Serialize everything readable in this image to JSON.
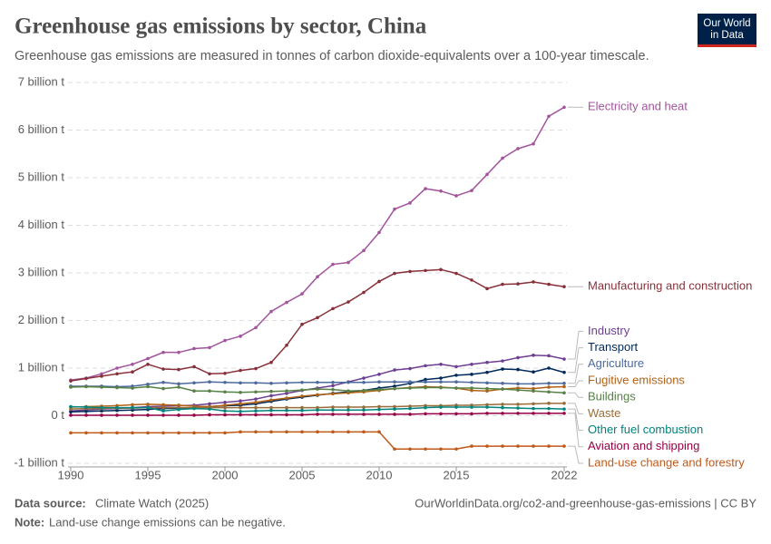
{
  "chart_data": {
    "type": "line",
    "title": "Greenhouse gas emissions by sector, China",
    "subtitle": "Greenhouse gas emissions are measured in tonnes of carbon dioxide-equivalents over a 100-year timescale.",
    "logo": [
      "Our World",
      "in Data"
    ],
    "source_label": "Data source:",
    "source": "Climate Watch (2025)",
    "url_license": "OurWorldinData.org/co2-and-greenhouse-gas-emissions | CC BY",
    "note_label": "Note:",
    "note": "Land-use change emissions can be negative.",
    "x": [
      1990,
      1991,
      1992,
      1993,
      1994,
      1995,
      1996,
      1997,
      1998,
      1999,
      2000,
      2001,
      2002,
      2003,
      2004,
      2005,
      2006,
      2007,
      2008,
      2009,
      2010,
      2011,
      2012,
      2013,
      2014,
      2015,
      2016,
      2017,
      2018,
      2019,
      2020,
      2021,
      2022
    ],
    "xlim": [
      1990,
      2022
    ],
    "xticks": [
      1990,
      1995,
      2000,
      2005,
      2010,
      2015,
      2022
    ],
    "ylim": [
      -1,
      7
    ],
    "yticks": [
      {
        "value": -1,
        "label": "-1 billion t"
      },
      {
        "value": 0,
        "label": "0 t"
      },
      {
        "value": 1,
        "label": "1 billion t"
      },
      {
        "value": 2,
        "label": "2 billion t"
      },
      {
        "value": 3,
        "label": "3 billion t"
      },
      {
        "value": 4,
        "label": "4 billion t"
      },
      {
        "value": 5,
        "label": "5 billion t"
      },
      {
        "value": 6,
        "label": "6 billion t"
      },
      {
        "value": 7,
        "label": "7 billion t"
      }
    ],
    "grid": true,
    "series": [
      {
        "name": "Electricity and heat",
        "color": "#a2559c",
        "values": [
          0.75,
          0.79,
          0.88,
          1.0,
          1.08,
          1.2,
          1.33,
          1.33,
          1.41,
          1.43,
          1.58,
          1.67,
          1.85,
          2.19,
          2.38,
          2.56,
          2.92,
          3.18,
          3.22,
          3.47,
          3.85,
          4.34,
          4.47,
          4.77,
          4.72,
          4.62,
          4.73,
          5.07,
          5.41,
          5.61,
          5.71,
          6.29,
          6.48
        ]
      },
      {
        "name": "Manufacturing and construction",
        "color": "#883039",
        "values": [
          0.73,
          0.78,
          0.83,
          0.88,
          0.92,
          1.08,
          0.98,
          0.97,
          1.03,
          0.88,
          0.89,
          0.95,
          0.99,
          1.12,
          1.48,
          1.92,
          2.06,
          2.25,
          2.39,
          2.59,
          2.82,
          2.99,
          3.03,
          3.05,
          3.07,
          2.99,
          2.85,
          2.67,
          2.76,
          2.77,
          2.81,
          2.76,
          2.71
        ]
      },
      {
        "name": "Industry",
        "color": "#6d3e91",
        "values": [
          0.1,
          0.12,
          0.14,
          0.15,
          0.17,
          0.19,
          0.2,
          0.21,
          0.22,
          0.25,
          0.28,
          0.31,
          0.35,
          0.42,
          0.47,
          0.53,
          0.58,
          0.63,
          0.71,
          0.79,
          0.87,
          0.96,
          0.99,
          1.05,
          1.08,
          1.03,
          1.08,
          1.12,
          1.15,
          1.22,
          1.27,
          1.26,
          1.19
        ]
      },
      {
        "name": "Transport",
        "color": "#00295b",
        "values": [
          0.08,
          0.09,
          0.1,
          0.11,
          0.12,
          0.13,
          0.15,
          0.16,
          0.17,
          0.19,
          0.21,
          0.22,
          0.25,
          0.3,
          0.35,
          0.39,
          0.43,
          0.47,
          0.5,
          0.53,
          0.58,
          0.62,
          0.68,
          0.76,
          0.79,
          0.85,
          0.87,
          0.91,
          0.98,
          0.97,
          0.92,
          1.0,
          0.91
        ]
      },
      {
        "name": "Agriculture",
        "color": "#4c6a9c",
        "values": [
          0.62,
          0.62,
          0.62,
          0.61,
          0.62,
          0.66,
          0.7,
          0.67,
          0.69,
          0.71,
          0.7,
          0.69,
          0.69,
          0.68,
          0.69,
          0.7,
          0.7,
          0.7,
          0.7,
          0.7,
          0.71,
          0.71,
          0.71,
          0.71,
          0.71,
          0.71,
          0.7,
          0.69,
          0.68,
          0.67,
          0.67,
          0.68,
          0.68
        ]
      },
      {
        "name": "Fugitive emissions",
        "color": "#b16214",
        "values": [
          0.18,
          0.19,
          0.2,
          0.21,
          0.23,
          0.24,
          0.23,
          0.22,
          0.2,
          0.19,
          0.22,
          0.25,
          0.28,
          0.33,
          0.37,
          0.41,
          0.44,
          0.46,
          0.48,
          0.5,
          0.53,
          0.57,
          0.59,
          0.61,
          0.6,
          0.58,
          0.53,
          0.52,
          0.56,
          0.58,
          0.57,
          0.6,
          0.61
        ]
      },
      {
        "name": "Buildings",
        "color": "#578145",
        "values": [
          0.6,
          0.61,
          0.6,
          0.59,
          0.58,
          0.61,
          0.57,
          0.6,
          0.52,
          0.52,
          0.5,
          0.49,
          0.5,
          0.51,
          0.52,
          0.54,
          0.56,
          0.55,
          0.52,
          0.53,
          0.55,
          0.57,
          0.58,
          0.59,
          0.59,
          0.58,
          0.58,
          0.57,
          0.56,
          0.54,
          0.52,
          0.5,
          0.48
        ]
      },
      {
        "name": "Waste",
        "color": "#996d39",
        "values": [
          0.14,
          0.15,
          0.15,
          0.16,
          0.16,
          0.17,
          0.17,
          0.17,
          0.17,
          0.17,
          0.17,
          0.17,
          0.17,
          0.17,
          0.17,
          0.17,
          0.17,
          0.18,
          0.18,
          0.18,
          0.19,
          0.19,
          0.2,
          0.21,
          0.21,
          0.22,
          0.22,
          0.23,
          0.24,
          0.24,
          0.25,
          0.26,
          0.26
        ]
      },
      {
        "name": "Other fuel combustion",
        "color": "#00847e",
        "values": [
          0.19,
          0.18,
          0.17,
          0.17,
          0.17,
          0.17,
          0.1,
          0.13,
          0.15,
          0.14,
          0.1,
          0.09,
          0.1,
          0.11,
          0.11,
          0.11,
          0.12,
          0.12,
          0.12,
          0.12,
          0.13,
          0.14,
          0.15,
          0.17,
          0.18,
          0.18,
          0.18,
          0.18,
          0.17,
          0.16,
          0.15,
          0.15,
          0.14
        ]
      },
      {
        "name": "Aviation and shipping",
        "color": "#970046",
        "values": [
          0.01,
          0.01,
          0.01,
          0.01,
          0.01,
          0.01,
          0.01,
          0.01,
          0.01,
          0.02,
          0.02,
          0.02,
          0.02,
          0.02,
          0.02,
          0.02,
          0.03,
          0.03,
          0.03,
          0.03,
          0.03,
          0.03,
          0.03,
          0.04,
          0.04,
          0.04,
          0.04,
          0.05,
          0.05,
          0.05,
          0.05,
          0.05,
          0.05
        ]
      },
      {
        "name": "Land-use change and forestry",
        "color": "#c05917",
        "values": [
          -0.36,
          -0.36,
          -0.36,
          -0.36,
          -0.36,
          -0.36,
          -0.36,
          -0.36,
          -0.36,
          -0.36,
          -0.36,
          -0.34,
          -0.34,
          -0.34,
          -0.34,
          -0.34,
          -0.34,
          -0.34,
          -0.34,
          -0.34,
          -0.34,
          -0.7,
          -0.7,
          -0.7,
          -0.7,
          -0.7,
          -0.64,
          -0.64,
          -0.64,
          -0.64,
          -0.64,
          -0.64,
          -0.64
        ]
      }
    ]
  }
}
